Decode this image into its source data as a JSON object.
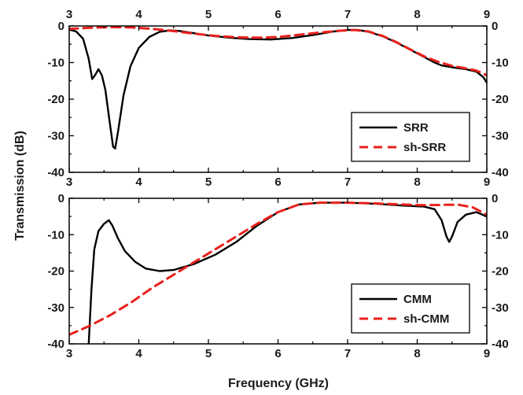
{
  "figure": {
    "xlabel": "Frequency (GHz)",
    "ylabel": "Transmission (dB)"
  },
  "chart_data": [
    {
      "type": "line",
      "xlim": [
        3,
        9
      ],
      "ylim": [
        -40,
        0
      ],
      "x_ticks": [
        "3",
        "4",
        "5",
        "6",
        "7",
        "8",
        "9"
      ],
      "y_ticks": [
        "0",
        "-10",
        "-20",
        "-30",
        "-40"
      ],
      "top_axis_ticks": true,
      "right_axis_ticks": true,
      "grid": false,
      "legend_position": "bottom-right",
      "series": [
        {
          "name": "SRR",
          "color": "#000000",
          "dash": "solid",
          "points": [
            [
              3.0,
              -1.0
            ],
            [
              3.1,
              -1.5
            ],
            [
              3.2,
              -3.5
            ],
            [
              3.28,
              -9.0
            ],
            [
              3.33,
              -14.5
            ],
            [
              3.37,
              -13.5
            ],
            [
              3.42,
              -11.8
            ],
            [
              3.47,
              -13.5
            ],
            [
              3.52,
              -17.5
            ],
            [
              3.58,
              -26.0
            ],
            [
              3.63,
              -33.0
            ],
            [
              3.66,
              -33.5
            ],
            [
              3.7,
              -29.0
            ],
            [
              3.78,
              -19.0
            ],
            [
              3.88,
              -11.0
            ],
            [
              4.0,
              -6.0
            ],
            [
              4.15,
              -3.0
            ],
            [
              4.3,
              -1.6
            ],
            [
              4.45,
              -1.2
            ],
            [
              4.6,
              -1.4
            ],
            [
              4.8,
              -2.0
            ],
            [
              5.0,
              -2.6
            ],
            [
              5.3,
              -3.2
            ],
            [
              5.6,
              -3.6
            ],
            [
              5.9,
              -3.7
            ],
            [
              6.2,
              -3.3
            ],
            [
              6.5,
              -2.5
            ],
            [
              6.8,
              -1.5
            ],
            [
              7.0,
              -1.1
            ],
            [
              7.15,
              -1.1
            ],
            [
              7.3,
              -1.6
            ],
            [
              7.5,
              -2.8
            ],
            [
              7.7,
              -4.5
            ],
            [
              7.9,
              -6.5
            ],
            [
              8.1,
              -8.5
            ],
            [
              8.25,
              -10.0
            ],
            [
              8.35,
              -10.8
            ],
            [
              8.5,
              -11.3
            ],
            [
              8.7,
              -11.8
            ],
            [
              8.85,
              -12.5
            ],
            [
              8.95,
              -14.0
            ],
            [
              9.0,
              -15.5
            ]
          ]
        },
        {
          "name": "sh-SRR",
          "color": "#e8211c",
          "dash": "dashed",
          "points": [
            [
              3.0,
              -0.8
            ],
            [
              3.3,
              -0.5
            ],
            [
              3.6,
              -0.3
            ],
            [
              3.9,
              -0.4
            ],
            [
              4.2,
              -0.8
            ],
            [
              4.5,
              -1.4
            ],
            [
              4.8,
              -2.1
            ],
            [
              5.1,
              -2.7
            ],
            [
              5.4,
              -3.1
            ],
            [
              5.7,
              -3.2
            ],
            [
              6.0,
              -3.0
            ],
            [
              6.3,
              -2.4
            ],
            [
              6.6,
              -1.8
            ],
            [
              6.9,
              -1.3
            ],
            [
              7.1,
              -1.1
            ],
            [
              7.3,
              -1.5
            ],
            [
              7.5,
              -2.7
            ],
            [
              7.7,
              -4.4
            ],
            [
              7.9,
              -6.4
            ],
            [
              8.1,
              -8.3
            ],
            [
              8.3,
              -9.8
            ],
            [
              8.5,
              -10.9
            ],
            [
              8.7,
              -11.6
            ],
            [
              8.85,
              -12.2
            ],
            [
              8.95,
              -13.0
            ],
            [
              9.0,
              -13.5
            ]
          ]
        }
      ]
    },
    {
      "type": "line",
      "xlim": [
        3,
        9
      ],
      "ylim": [
        -40,
        0
      ],
      "x_ticks": [
        "3",
        "4",
        "5",
        "6",
        "7",
        "8",
        "9"
      ],
      "y_ticks": [
        "0",
        "-10",
        "-20",
        "-30",
        "-40"
      ],
      "top_axis_ticks": true,
      "right_axis_ticks": true,
      "grid": false,
      "legend_position": "bottom-right",
      "series": [
        {
          "name": "CMM",
          "color": "#000000",
          "dash": "solid",
          "points": [
            [
              3.28,
              -40.0
            ],
            [
              3.32,
              -25.0
            ],
            [
              3.36,
              -14.0
            ],
            [
              3.42,
              -9.0
            ],
            [
              3.5,
              -7.0
            ],
            [
              3.57,
              -6.0
            ],
            [
              3.62,
              -7.5
            ],
            [
              3.7,
              -11.0
            ],
            [
              3.8,
              -14.5
            ],
            [
              3.95,
              -17.5
            ],
            [
              4.1,
              -19.3
            ],
            [
              4.3,
              -20.0
            ],
            [
              4.5,
              -19.7
            ],
            [
              4.8,
              -18.0
            ],
            [
              5.1,
              -15.5
            ],
            [
              5.4,
              -12.0
            ],
            [
              5.7,
              -7.5
            ],
            [
              6.0,
              -3.8
            ],
            [
              6.3,
              -1.7
            ],
            [
              6.6,
              -1.2
            ],
            [
              7.0,
              -1.2
            ],
            [
              7.4,
              -1.5
            ],
            [
              7.8,
              -2.0
            ],
            [
              8.1,
              -2.3
            ],
            [
              8.25,
              -3.0
            ],
            [
              8.35,
              -6.0
            ],
            [
              8.42,
              -10.5
            ],
            [
              8.46,
              -12.0
            ],
            [
              8.5,
              -10.5
            ],
            [
              8.58,
              -6.5
            ],
            [
              8.7,
              -4.5
            ],
            [
              8.85,
              -3.8
            ],
            [
              9.0,
              -5.0
            ]
          ]
        },
        {
          "name": "sh-CMM",
          "color": "#e8211c",
          "dash": "dashed",
          "points": [
            [
              3.0,
              -37.5
            ],
            [
              3.3,
              -35.0
            ],
            [
              3.6,
              -32.0
            ],
            [
              3.9,
              -28.5
            ],
            [
              4.2,
              -24.5
            ],
            [
              4.5,
              -21.0
            ],
            [
              4.8,
              -17.5
            ],
            [
              5.1,
              -14.0
            ],
            [
              5.4,
              -10.5
            ],
            [
              5.7,
              -7.0
            ],
            [
              6.0,
              -3.8
            ],
            [
              6.3,
              -1.7
            ],
            [
              6.6,
              -1.2
            ],
            [
              7.0,
              -1.2
            ],
            [
              7.4,
              -1.4
            ],
            [
              7.8,
              -1.7
            ],
            [
              8.1,
              -1.9
            ],
            [
              8.4,
              -1.8
            ],
            [
              8.6,
              -1.8
            ],
            [
              8.8,
              -2.5
            ],
            [
              9.0,
              -4.5
            ]
          ]
        }
      ]
    }
  ]
}
